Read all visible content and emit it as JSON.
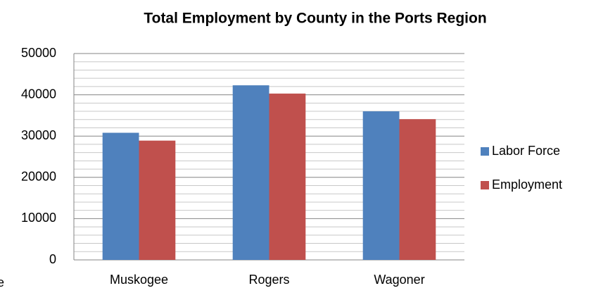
{
  "chart_data": {
    "type": "bar",
    "title": "Total Employment by County in the Ports Region",
    "categories": [
      "Muskogee",
      "Rogers",
      "Wagoner"
    ],
    "series": [
      {
        "name": "Labor Force",
        "color": "#4f81bd",
        "values": [
          30800,
          42300,
          36000
        ]
      },
      {
        "name": "Employment",
        "color": "#c0504d",
        "values": [
          28900,
          40300,
          34100
        ]
      }
    ],
    "ylim": [
      0,
      50000
    ],
    "yticks": [
      0,
      10000,
      20000,
      30000,
      40000,
      50000
    ],
    "minor_yticks": [
      2000,
      4000,
      6000,
      8000,
      12000,
      14000,
      16000,
      18000,
      22000,
      24000,
      26000,
      28000,
      32000,
      34000,
      36000,
      38000,
      42000,
      44000,
      46000,
      48000
    ],
    "grid": true,
    "legend": "right",
    "annotation": "e"
  }
}
